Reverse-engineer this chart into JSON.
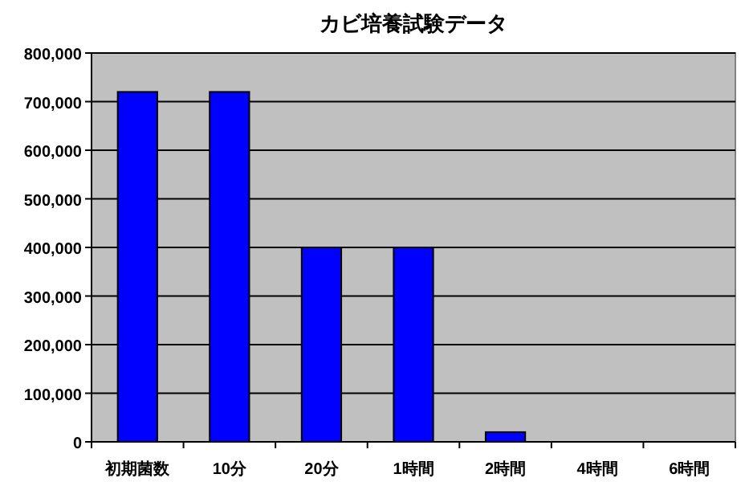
{
  "chart_data": {
    "type": "bar",
    "title": "カビ培養試験データ",
    "categories": [
      "初期菌数",
      "10分",
      "20分",
      "1時間",
      "2時間",
      "4時間",
      "6時間"
    ],
    "values": [
      720000,
      720000,
      400000,
      400000,
      20000,
      0,
      0
    ],
    "color": "#0000ff",
    "ylim": [
      0,
      800000
    ],
    "yticks": [
      {
        "value": 0,
        "label": "0"
      },
      {
        "value": 100000,
        "label": "100,000"
      },
      {
        "value": 200000,
        "label": "200,000"
      },
      {
        "value": 300000,
        "label": "300,000"
      },
      {
        "value": 400000,
        "label": "400,000"
      },
      {
        "value": 500000,
        "label": "500,000"
      },
      {
        "value": 600000,
        "label": "600,000"
      },
      {
        "value": 700000,
        "label": "700,000"
      },
      {
        "value": 800000,
        "label": "800,000"
      }
    ],
    "grid": "y"
  }
}
